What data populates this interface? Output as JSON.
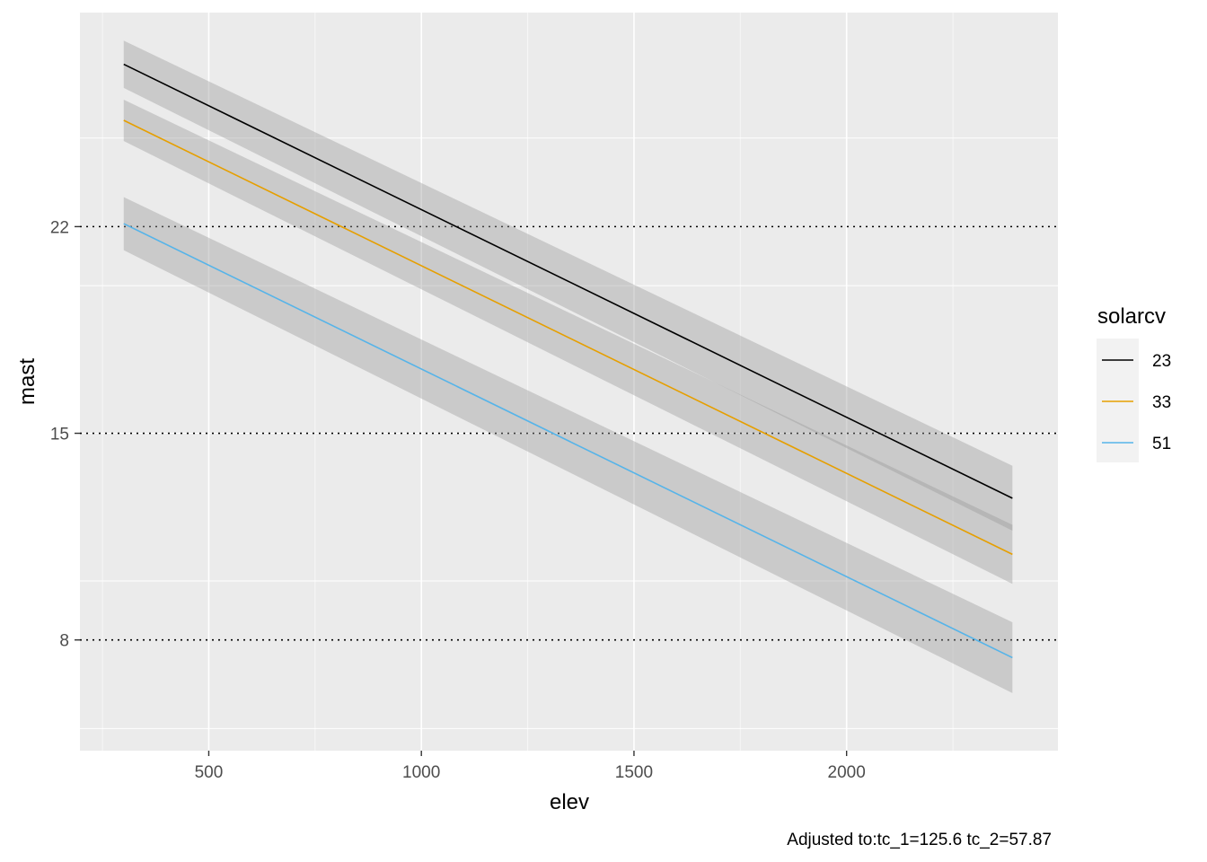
{
  "chart_data": {
    "type": "line",
    "title": "",
    "xlabel": "elev",
    "ylabel": "mast",
    "caption": "Adjusted to:tc_1=125.6 tc_2=57.87",
    "xlim": [
      197,
      2497
    ],
    "ylim": [
      4.25,
      29.25
    ],
    "x_ticks": [
      500,
      1000,
      1500,
      2000
    ],
    "x_tick_labels": [
      "500",
      "1000",
      "1500",
      "2000"
    ],
    "x_minor": [
      250,
      750,
      1250,
      1750,
      2250
    ],
    "y_ticks": [
      8,
      15,
      22
    ],
    "y_tick_labels": [
      "8",
      "15",
      "22"
    ],
    "y_gridlines": [
      5,
      10,
      15,
      20,
      25
    ],
    "y_dotted_reference": [
      8,
      15,
      22
    ],
    "legend": {
      "title": "solarcv",
      "position": "right"
    },
    "series": [
      {
        "name": "23",
        "color": "#000000",
        "x": [
          300,
          2390
        ],
        "y": [
          27.5,
          12.8
        ],
        "lower": [
          26.7,
          11.7
        ],
        "upper": [
          28.3,
          13.9
        ]
      },
      {
        "name": "33",
        "color": "#E69F00",
        "x": [
          300,
          2390
        ],
        "y": [
          25.6,
          10.9
        ],
        "lower": [
          24.9,
          9.9
        ],
        "upper": [
          26.3,
          11.9
        ]
      },
      {
        "name": "51",
        "color": "#56B4E9",
        "x": [
          300,
          2390
        ],
        "y": [
          22.1,
          7.4
        ],
        "lower": [
          21.2,
          6.2
        ],
        "upper": [
          23.0,
          8.6
        ]
      }
    ]
  }
}
